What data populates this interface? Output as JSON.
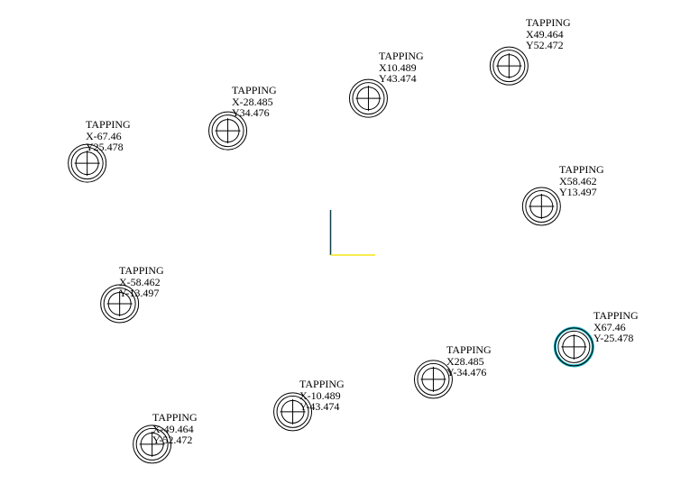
{
  "colors": {
    "background": "#ffffff",
    "hole_stroke": "#000000",
    "selected_hole_stroke": "#19b3c2",
    "axis_y": "#0f3d4a",
    "axis_x": "#f5e616",
    "text": "#000000"
  },
  "holes": [
    {
      "id": "h1",
      "label": "TAPPING",
      "x_text": "X49.464",
      "y_text": "Y52.472",
      "selected": false
    },
    {
      "id": "h2",
      "label": "TAPPING",
      "x_text": "X10.489",
      "y_text": "Y43.474",
      "selected": false
    },
    {
      "id": "h3",
      "label": "TAPPING",
      "x_text": "X-28.485",
      "y_text": "Y34.476",
      "selected": false
    },
    {
      "id": "h4",
      "label": "TAPPING",
      "x_text": "X-67.46",
      "y_text": "Y25.478",
      "selected": false
    },
    {
      "id": "h5",
      "label": "TAPPING",
      "x_text": "X58.462",
      "y_text": "Y13.497",
      "selected": false
    },
    {
      "id": "h6",
      "label": "TAPPING",
      "x_text": "X-58.462",
      "y_text": "Y-13.497",
      "selected": false
    },
    {
      "id": "h7",
      "label": "TAPPING",
      "x_text": "X67.46",
      "y_text": "Y-25.478",
      "selected": true
    },
    {
      "id": "h8",
      "label": "TAPPING",
      "x_text": "X28.485",
      "y_text": "Y-34.476",
      "selected": false
    },
    {
      "id": "h9",
      "label": "TAPPING",
      "x_text": "X-10.489",
      "y_text": "Y-43.474",
      "selected": false
    },
    {
      "id": "h10",
      "label": "TAPPING",
      "x_text": "X-49.464",
      "y_text": "Y-52.472",
      "selected": false
    }
  ]
}
